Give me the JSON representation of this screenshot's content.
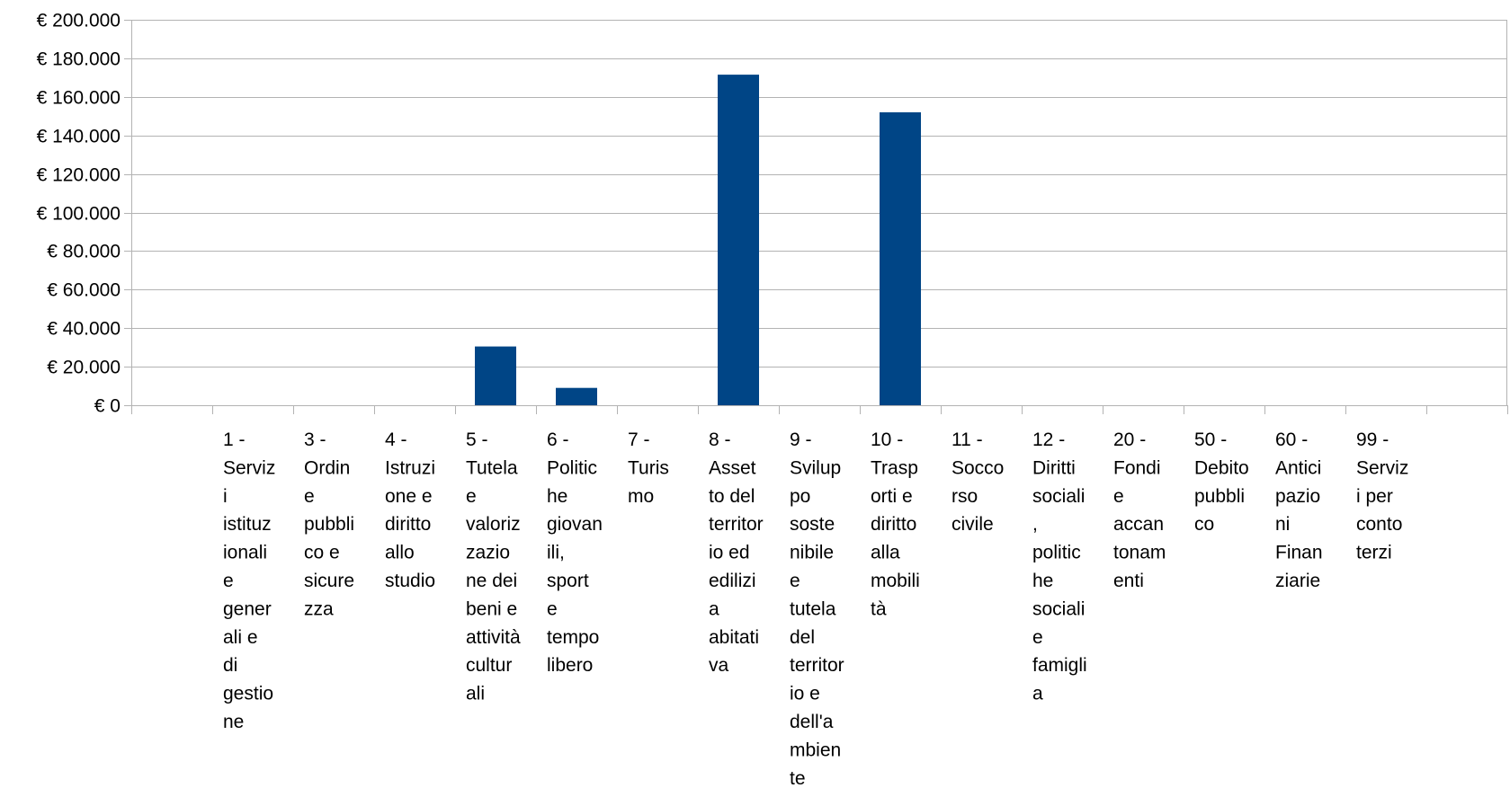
{
  "chart_data": {
    "type": "bar",
    "title": "",
    "xlabel": "",
    "ylabel": "",
    "ylim": [
      0,
      200000
    ],
    "ytick_values": [
      0,
      20000,
      40000,
      60000,
      80000,
      100000,
      120000,
      140000,
      160000,
      180000,
      200000
    ],
    "ytick_labels": [
      "€ 0",
      "€ 20.000",
      "€ 40.000",
      "€ 60.000",
      "€ 80.000",
      "€ 100.000",
      "€ 120.000",
      "€ 140.000",
      "€ 160.000",
      "€ 180.000",
      "€ 200.000"
    ],
    "grid": true,
    "legend": "none",
    "bar_color": "#004586",
    "categories": [
      "",
      "1 - Servizi istituzionali e generali e di gestione",
      "3 - Ordine pubblico e sicurezza",
      "4 - Istruzione e diritto allo studio",
      "5 - Tutela e valorizzazione dei beni e attività culturali",
      "6 - Politiche giovanili, sport e tempo libero",
      "7 - Turismo",
      "8 - Assetto del territorio ed edilizia abitativa",
      "9 - Sviluppo sostenibile e tutela del territorio e dell'ambiente",
      "10 - Trasporti e diritto alla mobilità",
      "11 - Soccorso civile",
      "12 - Diritti sociali, politiche sociali e famiglia",
      "20 - Fondi e accantonamenti",
      "50 - Debito pubblico",
      "60 - Anticipazioni Finanziarie",
      "99 - Servizi per conto terzi",
      ""
    ],
    "category_label_lines": [
      [],
      [
        "1 -",
        "Serviz",
        "i",
        "istituz",
        "ionali",
        "e",
        "gener",
        "ali e",
        "di",
        "gestio",
        "ne"
      ],
      [
        "3 -",
        "Ordin",
        "e",
        "pubbli",
        "co e",
        "sicure",
        "zza"
      ],
      [
        "4 -",
        "Istruzi",
        "one e",
        "diritto",
        "allo",
        "studio"
      ],
      [
        "5 -",
        "Tutela",
        "e",
        "valoriz",
        "zazio",
        "ne dei",
        "beni e",
        "attività",
        "cultur",
        "ali"
      ],
      [
        "6 -",
        "Politic",
        "he",
        "giovan",
        "ili,",
        "sport",
        "e",
        "tempo",
        "libero"
      ],
      [
        "7 -",
        "Turis",
        "mo"
      ],
      [
        "8 -",
        "Asset",
        "to del",
        "territor",
        "io ed",
        "edilizi",
        "a",
        "abitati",
        "va"
      ],
      [
        "9 -",
        "Svilup",
        "po",
        "soste",
        "nibile",
        "e",
        "tutela",
        "del",
        "territor",
        "io e",
        "dell'a",
        "mbien",
        "te"
      ],
      [
        "10 -",
        "Trasp",
        "orti e",
        "diritto",
        "alla",
        "mobili",
        "tà"
      ],
      [
        "11 -",
        "Socco",
        "rso",
        "civile"
      ],
      [
        "12 -",
        "Diritti",
        "sociali",
        ",",
        "politic",
        "he",
        "sociali",
        "e",
        "famigli",
        "a"
      ],
      [
        "20 -",
        "Fondi",
        "e",
        "accan",
        "tonam",
        "enti"
      ],
      [
        "50 -",
        "Debito",
        "pubbli",
        "co"
      ],
      [
        "60 -",
        "Antici",
        "pazio",
        "ni",
        "Finan",
        "ziarie"
      ],
      [
        "99 -",
        "Serviz",
        "i per",
        "conto",
        "terzi"
      ],
      []
    ],
    "values": [
      0,
      0,
      0,
      0,
      30500,
      9000,
      0,
      171500,
      0,
      152000,
      0,
      0,
      0,
      0,
      0,
      0,
      0
    ]
  }
}
